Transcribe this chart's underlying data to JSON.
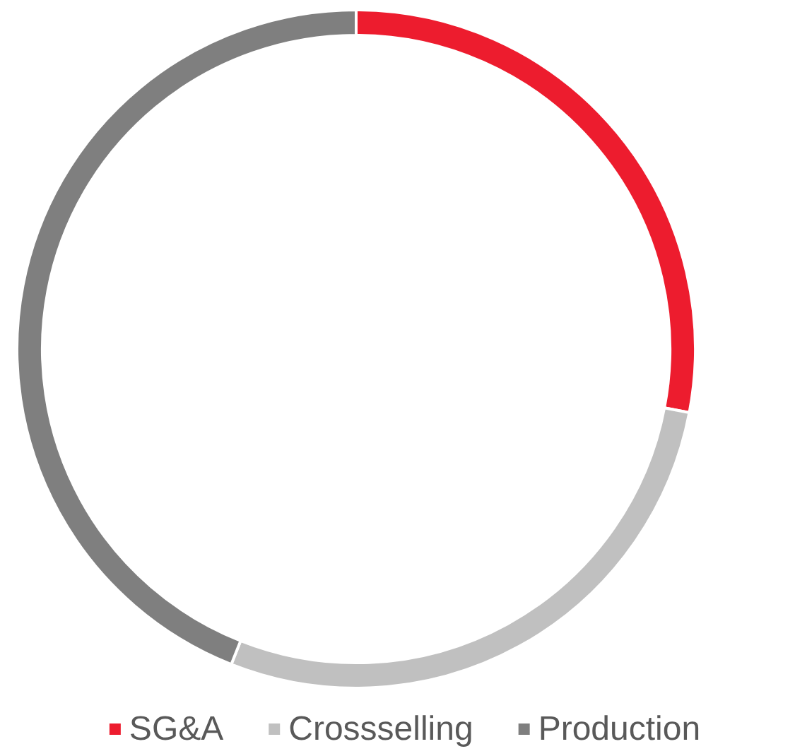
{
  "chart_data": {
    "type": "donut",
    "categories": [
      "SG&A",
      "Crossselling",
      "Production"
    ],
    "values": [
      28,
      28,
      44
    ],
    "colors": [
      "#ed1c2e",
      "#c0c0c0",
      "#7f7f7f"
    ],
    "legend": "bottom"
  }
}
